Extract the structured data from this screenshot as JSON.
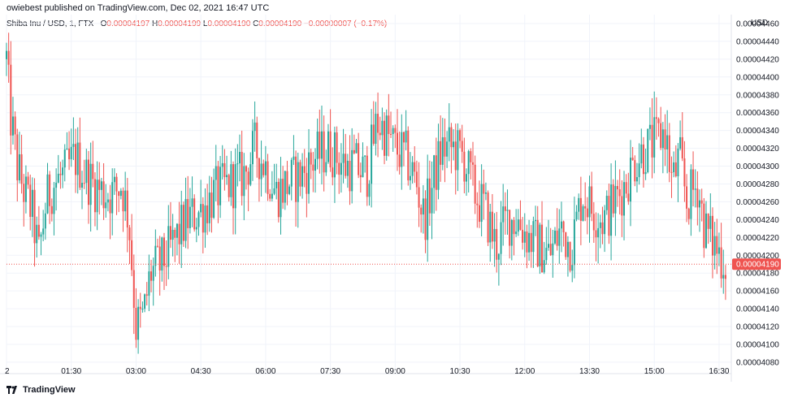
{
  "header": {
    "published": "owiebest published on TradingView.com, Dec 02, 2021 16:47 UTC"
  },
  "legend": {
    "symbol": "Shiba Inu / USD, 1, FTX",
    "open_label": "O",
    "open": "0.00004197",
    "high_label": "H",
    "high": "0.00004199",
    "low_label": "L",
    "low": "0.00004190",
    "close_label": "C",
    "close": "0.00004190",
    "change": "−0.00000007 (−0.17%)"
  },
  "footer": {
    "brand": "TradingView"
  },
  "colors": {
    "up": "#26a69a",
    "down": "#ef5350",
    "grid": "#f0f3fa",
    "axis_text": "#131722"
  },
  "chart_data": {
    "type": "candlestick",
    "interval": "1",
    "currency_label": "USD",
    "y_ticks": [
      "0.00004460",
      "0.00004440",
      "0.00004420",
      "0.00004400",
      "0.00004380",
      "0.00004360",
      "0.00004340",
      "0.00004320",
      "0.00004300",
      "0.00004280",
      "0.00004260",
      "0.00004240",
      "0.00004220",
      "0.00004200",
      "0.00004180",
      "0.00004160",
      "0.00004140",
      "0.00004120",
      "0.00004100",
      "0.00004080"
    ],
    "y_tick_values": [
      4.46e-05,
      4.44e-05,
      4.42e-05,
      4.4e-05,
      4.38e-05,
      4.36e-05,
      4.34e-05,
      4.32e-05,
      4.3e-05,
      4.28e-05,
      4.26e-05,
      4.24e-05,
      4.22e-05,
      4.2e-05,
      4.18e-05,
      4.16e-05,
      4.14e-05,
      4.12e-05,
      4.1e-05,
      4.08e-05
    ],
    "ylim": [
      4.069e-05,
      4.47e-05
    ],
    "x_ticks": [
      "2",
      "01:30",
      "03:00",
      "04:30",
      "06:00",
      "07:30",
      "09:00",
      "10:30",
      "12:00",
      "13:30",
      "15:00",
      "16:30"
    ],
    "x_tick_minutes": [
      0,
      90,
      180,
      270,
      360,
      450,
      540,
      630,
      720,
      810,
      900,
      990
    ],
    "xlim_minutes": [
      0,
      1007
    ],
    "last_price_label": "0.00004190",
    "last_price": 4.19e-05,
    "price_path": [
      [
        0,
        4.42e-05
      ],
      [
        5,
        4.36e-05
      ],
      [
        15,
        4.3e-05
      ],
      [
        25,
        4.27e-05
      ],
      [
        35,
        4.25e-05
      ],
      [
        45,
        4.2e-05
      ],
      [
        55,
        4.26e-05
      ],
      [
        65,
        4.28e-05
      ],
      [
        80,
        4.29e-05
      ],
      [
        95,
        4.31e-05
      ],
      [
        110,
        4.29e-05
      ],
      [
        120,
        4.28e-05
      ],
      [
        135,
        4.27e-05
      ],
      [
        150,
        4.27e-05
      ],
      [
        160,
        4.28e-05
      ],
      [
        170,
        4.24e-05
      ],
      [
        180,
        4.12e-05
      ],
      [
        190,
        4.13e-05
      ],
      [
        200,
        4.18e-05
      ],
      [
        215,
        4.19e-05
      ],
      [
        230,
        4.21e-05
      ],
      [
        250,
        4.24e-05
      ],
      [
        270,
        4.25e-05
      ],
      [
        290,
        4.27e-05
      ],
      [
        310,
        4.28e-05
      ],
      [
        330,
        4.29e-05
      ],
      [
        345,
        4.32e-05
      ],
      [
        360,
        4.3e-05
      ],
      [
        375,
        4.27e-05
      ],
      [
        390,
        4.28e-05
      ],
      [
        410,
        4.29e-05
      ],
      [
        430,
        4.31e-05
      ],
      [
        450,
        4.32e-05
      ],
      [
        470,
        4.3e-05
      ],
      [
        485,
        4.3e-05
      ],
      [
        500,
        4.29e-05
      ],
      [
        515,
        4.35e-05
      ],
      [
        525,
        4.34e-05
      ],
      [
        540,
        4.32e-05
      ],
      [
        555,
        4.31e-05
      ],
      [
        570,
        4.28e-05
      ],
      [
        580,
        4.24e-05
      ],
      [
        595,
        4.29e-05
      ],
      [
        605,
        4.32e-05
      ],
      [
        620,
        4.32e-05
      ],
      [
        635,
        4.31e-05
      ],
      [
        650,
        4.27e-05
      ],
      [
        665,
        4.25e-05
      ],
      [
        680,
        4.21e-05
      ],
      [
        695,
        4.24e-05
      ],
      [
        710,
        4.24e-05
      ],
      [
        725,
        4.22e-05
      ],
      [
        740,
        4.21e-05
      ],
      [
        755,
        4.2e-05
      ],
      [
        770,
        4.23e-05
      ],
      [
        785,
        4.21e-05
      ],
      [
        800,
        4.27e-05
      ],
      [
        815,
        4.25e-05
      ],
      [
        830,
        4.24e-05
      ],
      [
        845,
        4.26e-05
      ],
      [
        860,
        4.28e-05
      ],
      [
        875,
        4.31e-05
      ],
      [
        890,
        4.32e-05
      ],
      [
        905,
        4.33e-05
      ],
      [
        915,
        4.34e-05
      ],
      [
        925,
        4.28e-05
      ],
      [
        935,
        4.31e-05
      ],
      [
        945,
        4.26e-05
      ],
      [
        960,
        4.28e-05
      ],
      [
        970,
        4.23e-05
      ],
      [
        985,
        4.21e-05
      ],
      [
        1000,
        4.19e-05
      ]
    ]
  }
}
